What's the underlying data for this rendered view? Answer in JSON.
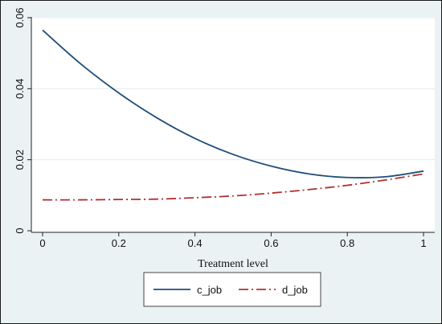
{
  "chart_data": {
    "type": "line",
    "title": "",
    "xlabel": "Treatment level",
    "ylabel": "",
    "xlim": [
      0,
      1
    ],
    "ylim": [
      0,
      0.06
    ],
    "xticks": [
      0,
      0.2,
      0.4,
      0.6,
      0.8,
      1
    ],
    "xtick_labels": [
      "0",
      "0.2",
      "0.4",
      "0.6",
      "0.8",
      "1"
    ],
    "yticks": [
      0,
      0.02,
      0.04,
      0.06
    ],
    "ytick_labels": [
      "0",
      "0.02",
      "0.04",
      "0.06"
    ],
    "grid": "horizontal",
    "legend_position": "bottom",
    "x": [
      0,
      0.1,
      0.2,
      0.3,
      0.4,
      0.5,
      0.6,
      0.7,
      0.8,
      0.9,
      1
    ],
    "series": [
      {
        "name": "c_job",
        "color": "#1f4e79",
        "dash": "solid",
        "values": [
          0.0565,
          0.047,
          0.0388,
          0.0318,
          0.026,
          0.0215,
          0.0182,
          0.016,
          0.015,
          0.0152,
          0.0168
        ]
      },
      {
        "name": "d_job",
        "color": "#b03030",
        "dash": "dash-dot",
        "values": [
          0.0087,
          0.0087,
          0.0088,
          0.0089,
          0.0093,
          0.0098,
          0.0106,
          0.0116,
          0.0128,
          0.0143,
          0.016
        ]
      }
    ]
  }
}
